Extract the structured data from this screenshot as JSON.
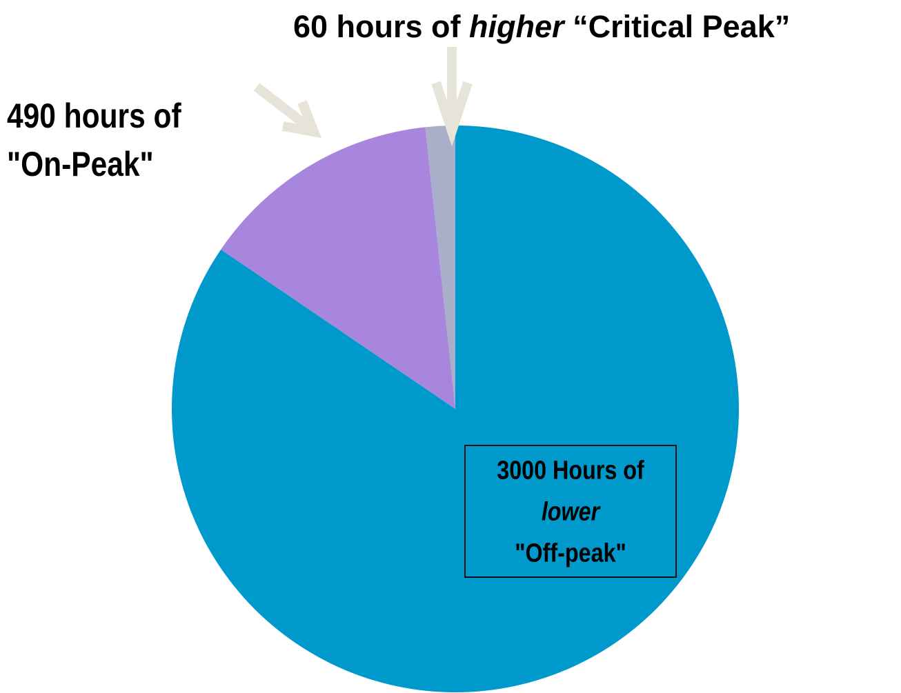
{
  "chart_data": {
    "type": "pie",
    "values": [
      3000,
      490,
      60
    ],
    "colors": [
      "#0099cc",
      "#a886de",
      "#a9aec9"
    ],
    "start": "top",
    "direction": "clockwise",
    "labels": [
      [
        [
          {
            "text": "3000 Hours of",
            "italic": false
          }
        ],
        [
          {
            "text": "lower",
            "italic": true
          }
        ],
        [
          {
            "text": "\"Off-peak\"",
            "italic": false
          }
        ]
      ],
      [
        [
          {
            "text": "490 hours of",
            "italic": false
          }
        ],
        [
          {
            "text": "\"On-Peak\"",
            "italic": false
          }
        ]
      ],
      [
        [
          {
            "text": "60 hours of ",
            "italic": false
          },
          {
            "text": "higher",
            "italic": true
          },
          {
            "text": " “Critical Peak”",
            "italic": false
          }
        ]
      ]
    ]
  }
}
